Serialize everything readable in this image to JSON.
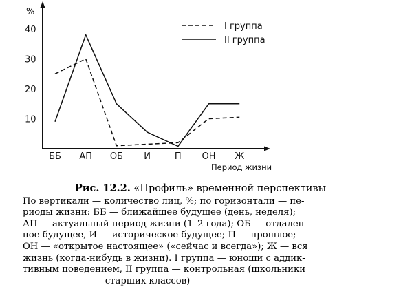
{
  "chart_data": {
    "type": "line",
    "ylabel": "%",
    "xlabel": "Период жизни",
    "categories": [
      "ББ",
      "АП",
      "ОБ",
      "И",
      "П",
      "ОН",
      "Ж"
    ],
    "yticks": [
      10,
      20,
      30,
      40
    ],
    "ylim": [
      0,
      48
    ],
    "legend_position": "top-right",
    "grid": false,
    "series": [
      {
        "name": "I группа",
        "style": "dashed",
        "values": [
          25,
          30,
          1,
          1.5,
          2,
          10,
          10.5
        ]
      },
      {
        "name": "II группа",
        "style": "solid",
        "values": [
          9,
          38,
          15,
          5.5,
          0.8,
          15,
          15
        ]
      }
    ]
  },
  "caption": {
    "fig_number": "Рис. 12.2.",
    "fig_title": "«Профиль» временной перспективы",
    "lines": [
      "По вертикали — количество лиц, %; по горизонтали — пе-",
      "риоды жизни: ББ — ближайшее будущее (день, неделя);",
      "АП — актуальный период жизни (1–2 года); ОБ — отдален-",
      "ное будущее, И — историческое будущее; П — прошлое;",
      "ОН — «открытое настоящее» («сейчас и всегда»); Ж — вся",
      "жизнь (когда-нибудь в жизни). I группа — юноши с аддик-",
      "тивным поведением, II группа — контрольная (школьники",
      "старших классов)"
    ]
  }
}
